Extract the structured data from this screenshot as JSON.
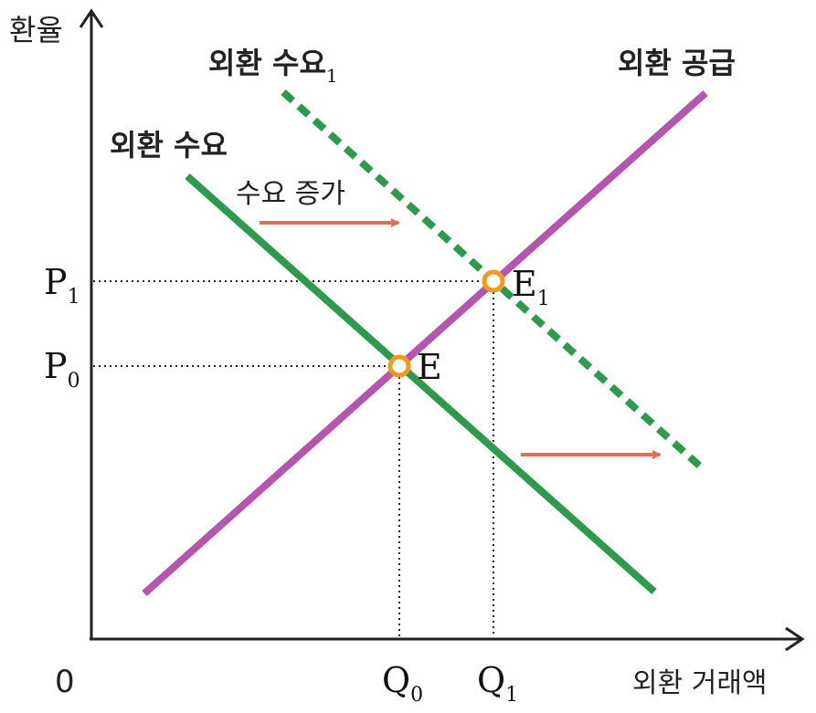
{
  "axes": {
    "y_label": "환율",
    "x_label": "외환 거래액",
    "origin_label": "0"
  },
  "curves": {
    "supply_label": "외환 공급",
    "demand_label": "외환 수요",
    "demand1_label_main": "외환 수요",
    "demand1_label_sub": "1"
  },
  "annotation": {
    "shift_label": "수요 증가"
  },
  "points": {
    "e_label": "E",
    "e1_label_main": "E",
    "e1_label_sub": "1"
  },
  "ticks": {
    "p0_main": "P",
    "p0_sub": "0",
    "p1_main": "P",
    "p1_sub": "1",
    "q0_main": "Q",
    "q0_sub": "0",
    "q1_main": "Q",
    "q1_sub": "1"
  },
  "colors": {
    "supply": "#b555ad",
    "demand": "#2e9a4d",
    "arrow": "#e07055",
    "equilibrium_ring": "#f29a1c",
    "axis": "#222222"
  }
}
